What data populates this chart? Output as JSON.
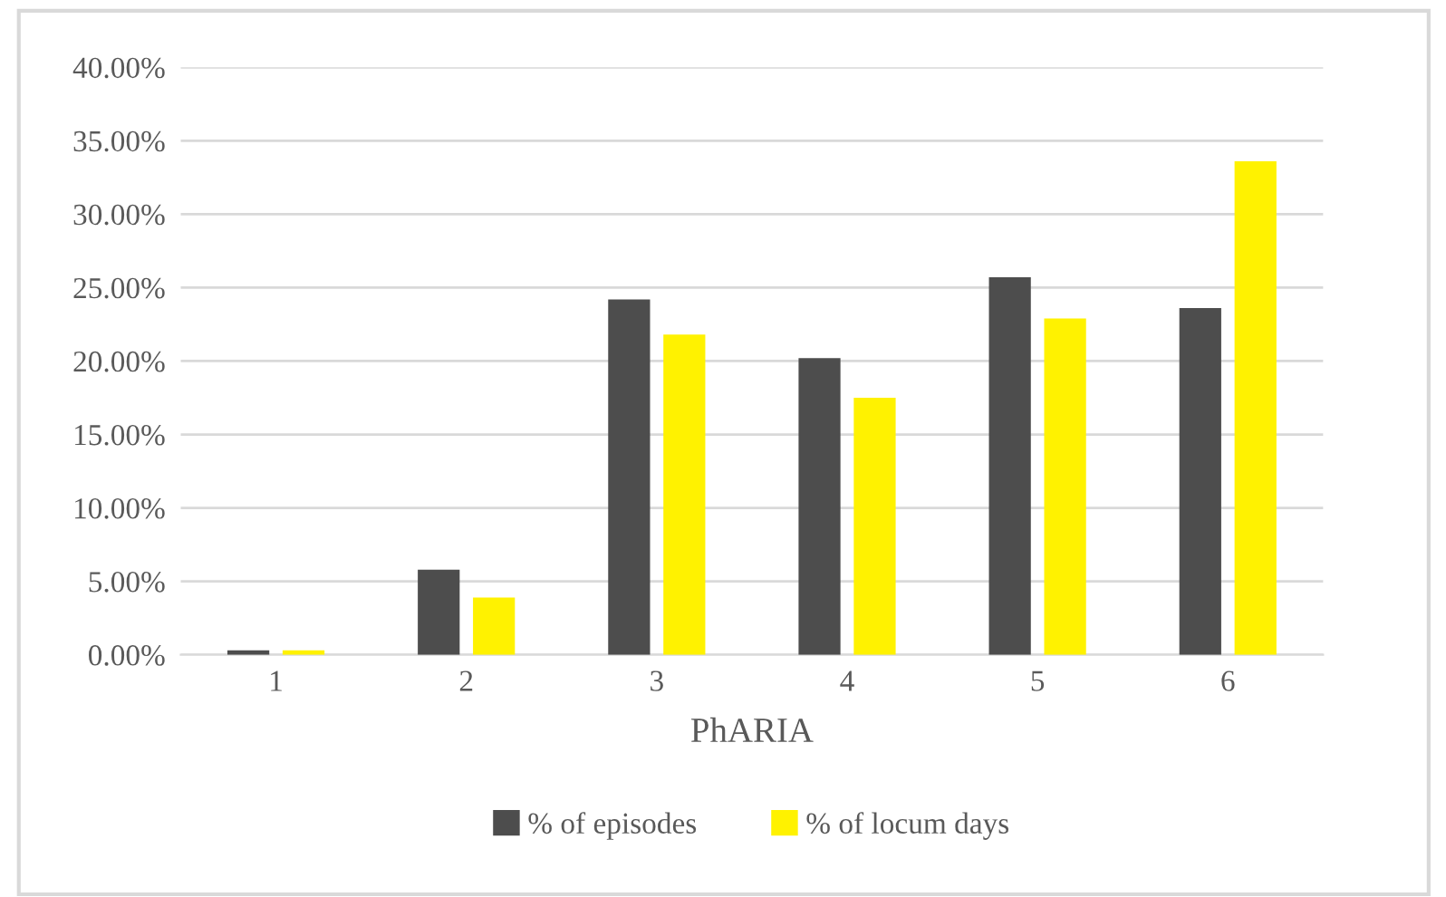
{
  "chart_data": {
    "type": "bar",
    "xlabel": "PhARIA",
    "categories": [
      "1",
      "2",
      "3",
      "4",
      "5",
      "6"
    ],
    "series": [
      {
        "name": "% of episodes",
        "color": "#4d4d4d",
        "values": [
          0.3,
          5.8,
          24.2,
          20.2,
          25.7,
          23.6
        ]
      },
      {
        "name": "% of locum days",
        "color": "#fff200",
        "values": [
          0.3,
          3.9,
          21.8,
          17.5,
          22.9,
          33.6
        ]
      }
    ],
    "ylim": [
      0,
      40
    ],
    "yticks": [
      {
        "value": 0,
        "label": "0.00%"
      },
      {
        "value": 5,
        "label": "5.00%"
      },
      {
        "value": 10,
        "label": "10.00%"
      },
      {
        "value": 15,
        "label": "15.00%"
      },
      {
        "value": 20,
        "label": "20.00%"
      },
      {
        "value": 25,
        "label": "25.00%"
      },
      {
        "value": 30,
        "label": "30.00%"
      },
      {
        "value": 35,
        "label": "35.00%"
      },
      {
        "value": 40,
        "label": "40.00%"
      }
    ],
    "grid": "y",
    "legend": "bottom"
  }
}
